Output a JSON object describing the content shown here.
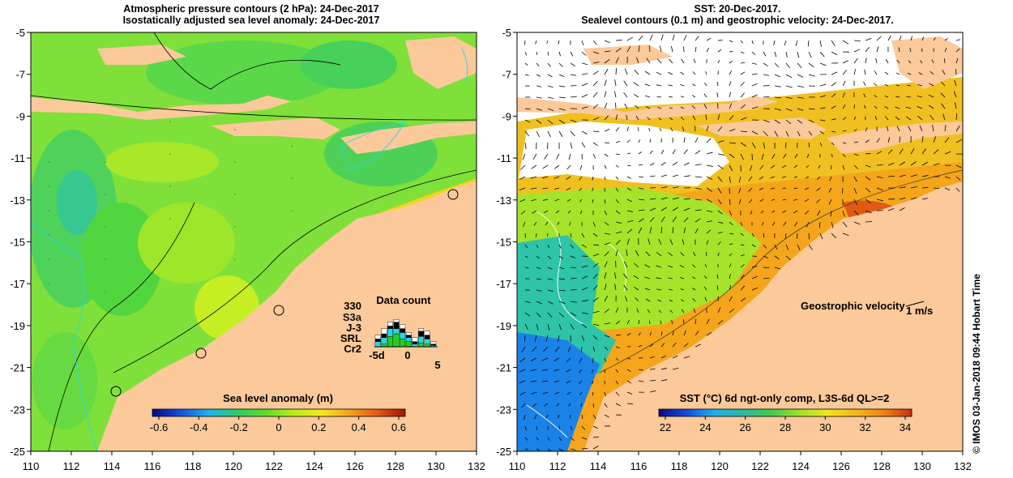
{
  "left_panel": {
    "title_line1": "Atmospheric pressure contours (2 hPa): 24-Dec-2017",
    "title_line2": "Isostatically adjusted sea level anomaly: 24-Dec-2017",
    "colorbar_label": "Sea level anomaly (m)",
    "colorbar_ticks": [
      "-0.6",
      "-0.4",
      "-0.2",
      "0",
      "0.2",
      "0.4",
      "0.6"
    ],
    "data_count": {
      "title": "Data count",
      "max_label": "330",
      "satellites": [
        {
          "name": "S3a",
          "color": "#ffffff"
        },
        {
          "name": "J-3",
          "color": "#000000"
        },
        {
          "name": "SRL",
          "color": "#22d8e8"
        },
        {
          "name": "Cr2",
          "color": "#22cc22"
        }
      ],
      "x_ticks": [
        "-5d",
        "0",
        "5"
      ]
    }
  },
  "right_panel": {
    "title_line1": "SST: 20-Dec-2017.",
    "title_line2": "Sealevel contours (0.1 m) and geostrophic velocity: 24-Dec-2017.",
    "colorbar_label": "SST (°C) 6d ngt-only comp, L3S-6d QL>=2",
    "colorbar_ticks": [
      "22",
      "24",
      "26",
      "28",
      "30",
      "32",
      "34"
    ],
    "velocity_label": "Geostrophic velocity",
    "velocity_scale": "1 m/s"
  },
  "axes": {
    "lon_ticks": [
      "110",
      "112",
      "114",
      "116",
      "118",
      "120",
      "122",
      "124",
      "126",
      "128",
      "130",
      "132"
    ],
    "lat_ticks": [
      "-5",
      "-7",
      "-9",
      "-11",
      "-13",
      "-15",
      "-17",
      "-19",
      "-21",
      "-23",
      "-25"
    ]
  },
  "credit": "© IMOS 03-Jan-2018 09:44 Hobart Time",
  "colors": {
    "land": "#fbc99a",
    "sla_ramp": [
      "#07078a",
      "#1450e0",
      "#19b4f0",
      "#2acb6a",
      "#5bdc2a",
      "#b4ee1e",
      "#f4e81e",
      "#f4a51a",
      "#e45a12",
      "#a51208"
    ],
    "sst_ramp": [
      "#07078a",
      "#1450e0",
      "#19b4f0",
      "#2ab8a0",
      "#3fcc50",
      "#9ee22a",
      "#f0e620",
      "#f4b81a",
      "#ee8418",
      "#c8300c"
    ]
  }
}
